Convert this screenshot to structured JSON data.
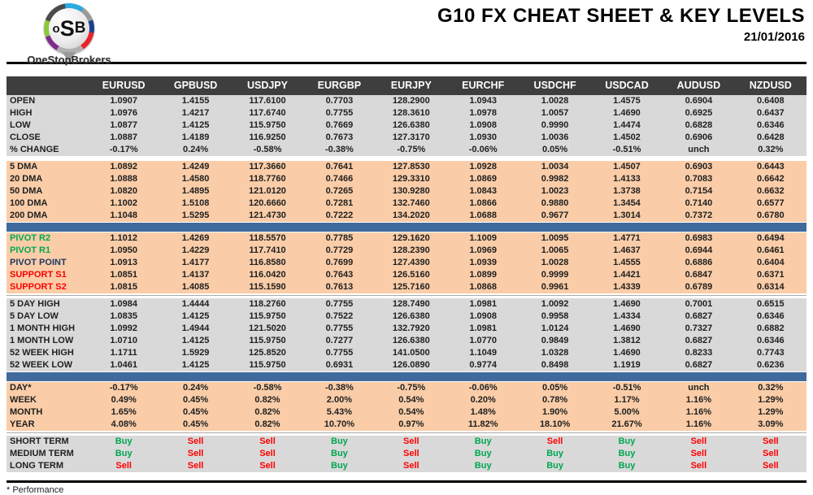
{
  "header": {
    "title": "G10 FX CHEAT SHEET & KEY LEVELS",
    "date": "21/01/2016",
    "logo_text": "oSB",
    "logo_brand": "OneStopBrokers"
  },
  "colors": {
    "header_dark": "#3E3E3E",
    "section_grey": "#D9D9D9",
    "section_peach": "#FACDA8",
    "separator_blue": "#406A9C",
    "buy_green": "#00A651",
    "sell_red": "#FE0000",
    "pivot_point_navy": "#1F3864"
  },
  "table": {
    "columns": [
      "EURUSD",
      "GPBUSD",
      "USDJPY",
      "EURGBP",
      "EURJPY",
      "EURCHF",
      "USDCHF",
      "USDCAD",
      "AUDUSD",
      "NZDUSD"
    ],
    "sections": [
      {
        "name": "ohlc",
        "bg": "grey",
        "after": "gap",
        "rows": [
          {
            "label": "OPEN",
            "values": [
              "1.0907",
              "1.4155",
              "117.6100",
              "0.7703",
              "128.2900",
              "1.0943",
              "1.0028",
              "1.4575",
              "0.6904",
              "0.6408"
            ]
          },
          {
            "label": "HIGH",
            "values": [
              "1.0976",
              "1.4217",
              "117.6740",
              "0.7755",
              "128.3610",
              "1.0978",
              "1.0057",
              "1.4690",
              "0.6925",
              "0.6437"
            ]
          },
          {
            "label": "LOW",
            "values": [
              "1.0877",
              "1.4125",
              "115.9750",
              "0.7669",
              "126.6380",
              "1.0908",
              "0.9990",
              "1.4474",
              "0.6828",
              "0.6346"
            ]
          },
          {
            "label": "CLOSE",
            "values": [
              "1.0887",
              "1.4189",
              "116.9250",
              "0.7673",
              "127.3170",
              "1.0930",
              "1.0036",
              "1.4502",
              "0.6906",
              "0.6428"
            ]
          },
          {
            "label": "% CHANGE",
            "values": [
              "-0.17%",
              "0.24%",
              "-0.58%",
              "-0.38%",
              "-0.75%",
              "-0.06%",
              "0.05%",
              "-0.51%",
              "unch",
              "0.32%"
            ]
          }
        ]
      },
      {
        "name": "dma",
        "bg": "peach",
        "after": "bluebar",
        "rows": [
          {
            "label": "5 DMA",
            "values": [
              "1.0892",
              "1.4249",
              "117.3660",
              "0.7641",
              "127.8530",
              "1.0928",
              "1.0034",
              "1.4507",
              "0.6903",
              "0.6443"
            ]
          },
          {
            "label": "20 DMA",
            "values": [
              "1.0888",
              "1.4580",
              "118.7760",
              "0.7466",
              "129.3310",
              "1.0869",
              "0.9982",
              "1.4133",
              "0.7083",
              "0.6642"
            ]
          },
          {
            "label": "50 DMA",
            "values": [
              "1.0820",
              "1.4895",
              "121.0120",
              "0.7265",
              "130.9280",
              "1.0843",
              "1.0023",
              "1.3738",
              "0.7154",
              "0.6632"
            ]
          },
          {
            "label": "100 DMA",
            "values": [
              "1.1002",
              "1.5108",
              "120.6660",
              "0.7281",
              "132.7460",
              "1.0866",
              "0.9880",
              "1.3454",
              "0.7140",
              "0.6577"
            ]
          },
          {
            "label": "200 DMA",
            "values": [
              "1.1048",
              "1.5295",
              "121.4730",
              "0.7222",
              "134.2020",
              "1.0688",
              "0.9677",
              "1.3014",
              "0.7372",
              "0.6780"
            ]
          }
        ]
      },
      {
        "name": "pivots",
        "bg": "peach",
        "after": "line",
        "rows": [
          {
            "label": "PIVOT R2",
            "label_class": "green",
            "values": [
              "1.1012",
              "1.4269",
              "118.5570",
              "0.7785",
              "129.1620",
              "1.1009",
              "1.0095",
              "1.4771",
              "0.6983",
              "0.6494"
            ]
          },
          {
            "label": "PIVOT R1",
            "label_class": "green",
            "values": [
              "1.0950",
              "1.4229",
              "117.7410",
              "0.7729",
              "128.2390",
              "1.0969",
              "1.0065",
              "1.4637",
              "0.6944",
              "0.6461"
            ]
          },
          {
            "label": "PIVOT POINT",
            "label_class": "navy",
            "values": [
              "1.0913",
              "1.4177",
              "116.8580",
              "0.7699",
              "127.4390",
              "1.0939",
              "1.0028",
              "1.4555",
              "0.6886",
              "0.6404"
            ]
          },
          {
            "label": "SUPPORT S1",
            "label_class": "red",
            "values": [
              "1.0851",
              "1.4137",
              "116.0420",
              "0.7643",
              "126.5160",
              "1.0899",
              "0.9999",
              "1.4421",
              "0.6847",
              "0.6371"
            ]
          },
          {
            "label": "SUPPORT S2",
            "label_class": "red",
            "values": [
              "1.0815",
              "1.4085",
              "115.1590",
              "0.7613",
              "125.7160",
              "1.0868",
              "0.9961",
              "1.4339",
              "0.6789",
              "0.6314"
            ]
          }
        ]
      },
      {
        "name": "ranges",
        "bg": "grey",
        "after": "bluebar",
        "rows": [
          {
            "label": "5 DAY HIGH",
            "values": [
              "1.0984",
              "1.4444",
              "118.2760",
              "0.7755",
              "128.7490",
              "1.0981",
              "1.0092",
              "1.4690",
              "0.7001",
              "0.6515"
            ]
          },
          {
            "label": "5 DAY LOW",
            "values": [
              "1.0835",
              "1.4125",
              "115.9750",
              "0.7522",
              "126.6380",
              "1.0908",
              "0.9958",
              "1.4334",
              "0.6827",
              "0.6346"
            ]
          },
          {
            "label": "1 MONTH HIGH",
            "values": [
              "1.0992",
              "1.4944",
              "121.5020",
              "0.7755",
              "132.7920",
              "1.0981",
              "1.0124",
              "1.4690",
              "0.7327",
              "0.6882"
            ]
          },
          {
            "label": "1 MONTH LOW",
            "values": [
              "1.0710",
              "1.4125",
              "115.9750",
              "0.7277",
              "126.6380",
              "1.0770",
              "0.9849",
              "1.3812",
              "0.6827",
              "0.6346"
            ]
          },
          {
            "label": "52 WEEK HIGH",
            "values": [
              "1.1711",
              "1.5929",
              "125.8520",
              "0.7755",
              "141.0500",
              "1.1049",
              "1.0328",
              "1.4690",
              "0.8233",
              "0.7743"
            ]
          },
          {
            "label": "52 WEEK LOW",
            "values": [
              "1.0461",
              "1.4125",
              "115.9750",
              "0.6931",
              "126.0890",
              "0.9774",
              "0.8498",
              "1.1919",
              "0.6827",
              "0.6236"
            ]
          }
        ]
      },
      {
        "name": "performance",
        "bg": "peach",
        "after": "line",
        "rows": [
          {
            "label": "DAY*",
            "values": [
              "-0.17%",
              "0.24%",
              "-0.58%",
              "-0.38%",
              "-0.75%",
              "-0.06%",
              "0.05%",
              "-0.51%",
              "unch",
              "0.32%"
            ]
          },
          {
            "label": "WEEK",
            "values": [
              "0.49%",
              "0.45%",
              "0.82%",
              "2.00%",
              "0.54%",
              "0.20%",
              "0.78%",
              "1.17%",
              "1.16%",
              "1.29%"
            ]
          },
          {
            "label": "MONTH",
            "values": [
              "1.65%",
              "0.45%",
              "0.82%",
              "5.43%",
              "0.54%",
              "1.48%",
              "1.90%",
              "5.00%",
              "1.16%",
              "1.29%"
            ]
          },
          {
            "label": "YEAR",
            "values": [
              "4.08%",
              "0.45%",
              "0.82%",
              "10.70%",
              "0.97%",
              "11.82%",
              "18.10%",
              "21.67%",
              "1.16%",
              "3.09%"
            ]
          }
        ]
      },
      {
        "name": "signals",
        "bg": "grey",
        "after": "none",
        "rows": [
          {
            "label": "SHORT TERM",
            "values": [
              "Buy",
              "Sell",
              "Sell",
              "Buy",
              "Sell",
              "Buy",
              "Sell",
              "Buy",
              "Sell",
              "Sell"
            ]
          },
          {
            "label": "MEDIUM TERM",
            "values": [
              "Buy",
              "Sell",
              "Sell",
              "Buy",
              "Sell",
              "Buy",
              "Buy",
              "Buy",
              "Sell",
              "Sell"
            ]
          },
          {
            "label": "LONG TERM",
            "values": [
              "Sell",
              "Sell",
              "Sell",
              "Buy",
              "Sell",
              "Buy",
              "Buy",
              "Buy",
              "Sell",
              "Sell"
            ]
          }
        ]
      }
    ]
  },
  "footer": {
    "note": "* Performance"
  }
}
